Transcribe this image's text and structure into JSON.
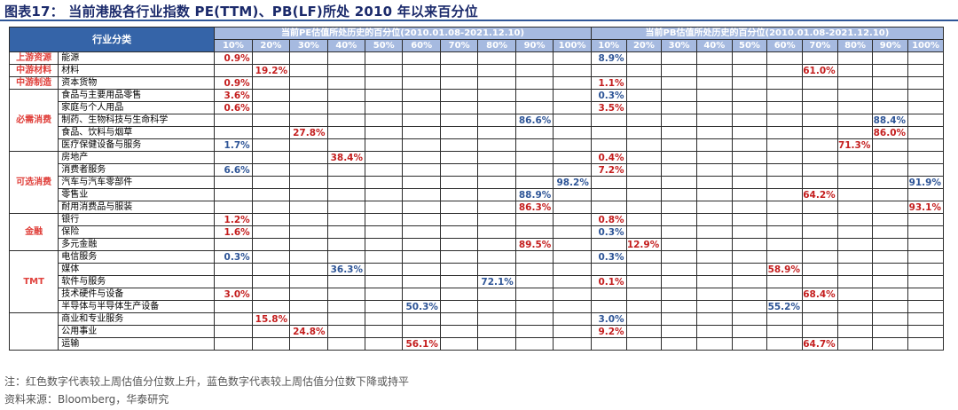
{
  "title": "图表17：  当前港股各行业指数 PE(TTM)、PB(LF)所处 2010 年以来百分位",
  "header": {
    "category_label": "行业分类",
    "pe_title": "当前PE估值所处历史的百分位(2010.01.08-2021.12.10)",
    "pb_title": "当前PB估值所处历史的百分位(2010.01.08-2021.12.10)",
    "bins": [
      "10%",
      "20%",
      "30%",
      "40%",
      "50%",
      "60%",
      "70%",
      "80%",
      "90%",
      "100%"
    ]
  },
  "colors": {
    "up": "#C41E1E",
    "down": "#2E5597",
    "header_dark": "#3564A8",
    "header_light": "#A6BAE0"
  },
  "rows": [
    {
      "group": "上游资源",
      "industry": "能源",
      "pe": "0.9%",
      "pe_dir": "up",
      "pb": "8.9%",
      "pb_dir": "down"
    },
    {
      "group": "中游材料",
      "industry": "材料",
      "pe": "19.2%",
      "pe_dir": "up",
      "pb": "61.0%",
      "pb_dir": "up"
    },
    {
      "group": "中游制造",
      "industry": "资本货物",
      "pe": "0.9%",
      "pe_dir": "up",
      "pb": "1.1%",
      "pb_dir": "up"
    },
    {
      "group": "必需消费",
      "industry": "食品与主要用品零售",
      "pe": "3.6%",
      "pe_dir": "up",
      "pb": "0.3%",
      "pb_dir": "down"
    },
    {
      "group": "必需消费",
      "industry": "家庭与个人用品",
      "pe": "0.6%",
      "pe_dir": "up",
      "pb": "3.5%",
      "pb_dir": "up"
    },
    {
      "group": "必需消费",
      "industry": "制药、生物科技与生命科学",
      "pe": "86.6%",
      "pe_dir": "down",
      "pb": "88.4%",
      "pb_dir": "down"
    },
    {
      "group": "必需消费",
      "industry": "食品、饮料与烟草",
      "pe": "27.8%",
      "pe_dir": "up",
      "pb": "86.0%",
      "pb_dir": "up"
    },
    {
      "group": "必需消费",
      "industry": "医疗保健设备与服务",
      "pe": "1.7%",
      "pe_dir": "down",
      "pb": "71.3%",
      "pb_dir": "up"
    },
    {
      "group": "可选消费",
      "industry": "房地产",
      "pe": "38.4%",
      "pe_dir": "up",
      "pb": "0.4%",
      "pb_dir": "up"
    },
    {
      "group": "可选消费",
      "industry": "消费者服务",
      "pe": "6.6%",
      "pe_dir": "down",
      "pb": "7.2%",
      "pb_dir": "up"
    },
    {
      "group": "可选消费",
      "industry": "汽车与汽车零部件",
      "pe": "98.2%",
      "pe_dir": "down",
      "pb": "91.9%",
      "pb_dir": "down"
    },
    {
      "group": "可选消费",
      "industry": "零售业",
      "pe": "88.9%",
      "pe_dir": "down",
      "pb": "64.2%",
      "pb_dir": "up"
    },
    {
      "group": "可选消费",
      "industry": "耐用消费品与服装",
      "pe": "86.3%",
      "pe_dir": "up",
      "pb": "93.1%",
      "pb_dir": "up"
    },
    {
      "group": "金融",
      "industry": "银行",
      "pe": "1.2%",
      "pe_dir": "up",
      "pb": "0.8%",
      "pb_dir": "up"
    },
    {
      "group": "金融",
      "industry": "保险",
      "pe": "1.6%",
      "pe_dir": "up",
      "pb": "0.3%",
      "pb_dir": "down"
    },
    {
      "group": "金融",
      "industry": "多元金融",
      "pe": "89.5%",
      "pe_dir": "up",
      "pb": "12.9%",
      "pb_dir": "up"
    },
    {
      "group": "TMT",
      "industry": "电信服务",
      "pe": "0.3%",
      "pe_dir": "down",
      "pb": "0.3%",
      "pb_dir": "down"
    },
    {
      "group": "TMT",
      "industry": "媒体",
      "pe": "36.3%",
      "pe_dir": "down",
      "pb": "58.9%",
      "pb_dir": "up"
    },
    {
      "group": "TMT",
      "industry": "软件与服务",
      "pe": "72.1%",
      "pe_dir": "down",
      "pb": "0.1%",
      "pb_dir": "up"
    },
    {
      "group": "TMT",
      "industry": "技术硬件与设备",
      "pe": "3.0%",
      "pe_dir": "up",
      "pb": "68.4%",
      "pb_dir": "up"
    },
    {
      "group": "TMT",
      "industry": "半导体与半导体生产设备",
      "pe": "50.3%",
      "pe_dir": "down",
      "pb": "55.2%",
      "pb_dir": "down"
    },
    {
      "group": "",
      "industry": "商业和专业服务",
      "pe": "15.8%",
      "pe_dir": "up",
      "pb": "3.0%",
      "pb_dir": "down"
    },
    {
      "group": "",
      "industry": "公用事业",
      "pe": "24.8%",
      "pe_dir": "up",
      "pb": "9.2%",
      "pb_dir": "up"
    },
    {
      "group": "",
      "industry": "运输",
      "pe": "56.1%",
      "pe_dir": "up",
      "pb": "64.7%",
      "pb_dir": "up"
    }
  ],
  "groups": [
    {
      "name": "上游资源",
      "start": 0,
      "span": 1,
      "color": "red"
    },
    {
      "name": "中游材料",
      "start": 1,
      "span": 1,
      "color": "red"
    },
    {
      "name": "中游制造",
      "start": 2,
      "span": 1,
      "color": "red"
    },
    {
      "name": "必需消费",
      "start": 3,
      "span": 5,
      "color": "red"
    },
    {
      "name": "可选消费",
      "start": 8,
      "span": 5,
      "color": "red"
    },
    {
      "name": "金融",
      "start": 13,
      "span": 3,
      "color": "red"
    },
    {
      "name": "TMT",
      "start": 16,
      "span": 5,
      "color": "red"
    },
    {
      "name": "",
      "start": 21,
      "span": 3,
      "color": "black"
    }
  ],
  "footnote": "注：红色数字代表较上周估值分位数上升，蓝色数字代表较上周估值分位数下降或持平",
  "source": "资料来源：Bloomberg，华泰研究"
}
